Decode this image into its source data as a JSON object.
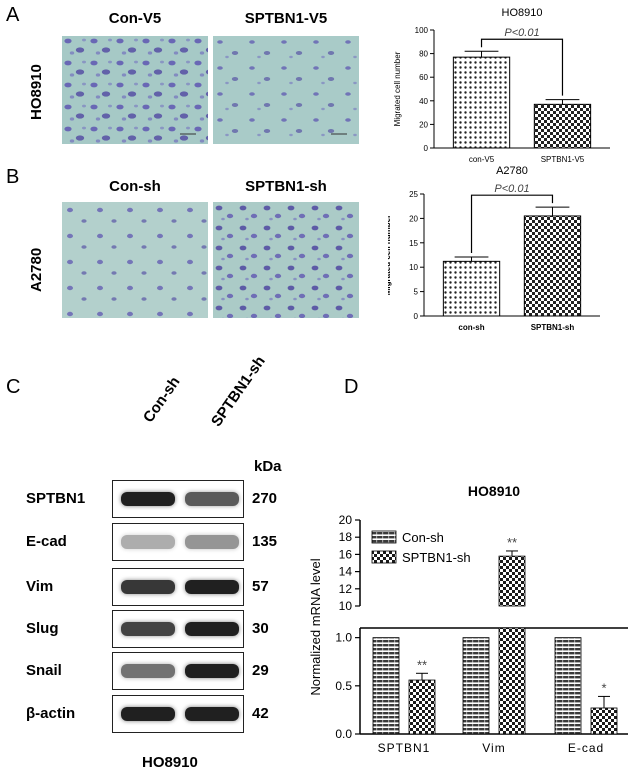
{
  "panel_letters": {
    "a": "A",
    "b": "B",
    "c": "C",
    "d": "D"
  },
  "panel_a": {
    "row_label": "HO8910",
    "image_labels": [
      "Con-V5",
      "SPTBN1-V5"
    ]
  },
  "panel_b": {
    "row_label": "A2780",
    "image_labels": [
      "Con-sh",
      "SPTBN1-sh"
    ]
  },
  "panel_c": {
    "lane_labels": [
      "Con-sh",
      "SPTBN1-sh"
    ],
    "kda_header": "kDa",
    "rows": [
      {
        "protein": "SPTBN1",
        "kda": "270"
      },
      {
        "protein": "E-cad",
        "kda": "135"
      },
      {
        "protein": "Vim",
        "kda": "57"
      },
      {
        "protein": "Slug",
        "kda": "30"
      },
      {
        "protein": "Snail",
        "kda": "29"
      },
      {
        "protein": "β-actin",
        "kda": "42"
      }
    ],
    "caption": "HO8910"
  },
  "chart_data": [
    {
      "type": "bar",
      "title": "HO8910",
      "categories": [
        "con-V5",
        "SPTBN1-V5"
      ],
      "values": [
        77,
        37
      ],
      "errors": [
        5,
        4
      ],
      "ylabel": "Migrated cell number",
      "ylim": [
        0,
        100
      ],
      "yticks": [
        0,
        20,
        40,
        60,
        80,
        100
      ],
      "annotation": "P<0.01"
    },
    {
      "type": "bar",
      "title": "A2780",
      "categories": [
        "con-sh",
        "SPTBN1-sh"
      ],
      "values": [
        11.2,
        20.5
      ],
      "errors": [
        0.9,
        1.8
      ],
      "ylabel": "Migrated cell number",
      "ylim": [
        0,
        25
      ],
      "yticks": [
        0,
        5,
        10,
        15,
        20,
        25
      ],
      "annotation": "P<0.01"
    },
    {
      "type": "bar",
      "title": "HO8910",
      "categories": [
        "SPTBN1",
        "Vim",
        "E-cad"
      ],
      "series": [
        {
          "name": "Con-sh",
          "values": [
            1.0,
            1.0,
            1.0
          ],
          "errors": [
            0,
            0,
            0
          ]
        },
        {
          "name": "SPTBN1-sh",
          "values": [
            0.56,
            15.8,
            0.27
          ],
          "errors": [
            0.07,
            0.6,
            0.12
          ]
        }
      ],
      "significance": [
        "**",
        "**",
        "*"
      ],
      "ylabel": "Normalized mRNA level",
      "broken_axis": true,
      "lower_yticks": [
        0.0,
        0.5,
        1.0
      ],
      "upper_yticks": [
        10,
        12,
        14,
        16,
        18,
        20
      ],
      "legend": "top-left"
    }
  ]
}
